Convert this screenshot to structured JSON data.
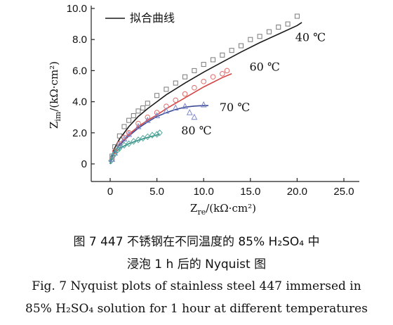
{
  "chart_data": {
    "type": "scatter",
    "legend": {
      "label": "拟合曲线",
      "placement": "top-left"
    },
    "xlabel_pre": "Z",
    "xlabel_sub": "re",
    "xlabel_post": "/(kΩ·cm²)",
    "ylabel_pre": "Z",
    "ylabel_sub": "im",
    "ylabel_post": "/(kΩ·cm²)",
    "xlim": [
      0,
      25
    ],
    "ylim": [
      0,
      10
    ],
    "xticks": [
      0,
      5,
      10,
      15,
      20,
      25
    ],
    "xtick_labels": [
      "0",
      "5.0",
      "10.0",
      "15.0",
      "20.0",
      "25.0"
    ],
    "yticks": [
      0,
      2,
      4,
      6,
      8,
      10
    ],
    "ytick_labels": [
      "0",
      "2.0",
      "4.0",
      "6.0",
      "8.0",
      "10.0"
    ],
    "series": [
      {
        "name": "40 ℃",
        "marker": "square",
        "color": "#7a7a7a",
        "fit_color": "#1a1a1a",
        "label_at": [
          19.8,
          7.9
        ],
        "x": [
          0.2,
          0.5,
          1.0,
          1.5,
          2.0,
          2.5,
          3.0,
          3.5,
          4.0,
          5.0,
          6.0,
          7.0,
          8.0,
          9.0,
          10.0,
          11.0,
          12.0,
          13.0,
          14.0,
          15.0,
          16.0,
          17.0,
          18.0,
          19.0,
          20.0
        ],
        "y": [
          0.5,
          1.1,
          1.8,
          2.4,
          2.8,
          3.1,
          3.4,
          3.6,
          3.9,
          4.4,
          4.8,
          5.2,
          5.6,
          6.0,
          6.4,
          6.7,
          7.0,
          7.3,
          7.6,
          8.0,
          8.2,
          8.5,
          8.8,
          9.0,
          9.5
        ],
        "fit_x": [
          0,
          0.2,
          0.5,
          1,
          2,
          3,
          4,
          5,
          6,
          8,
          10,
          12,
          14,
          16,
          18,
          20,
          20.5
        ],
        "fit_y": [
          0,
          0.55,
          1.05,
          1.6,
          2.4,
          3.05,
          3.55,
          4.0,
          4.45,
          5.2,
          5.9,
          6.55,
          7.2,
          7.8,
          8.35,
          8.9,
          9.1
        ]
      },
      {
        "name": "60 ℃",
        "marker": "circle",
        "color": "#e06a6a",
        "fit_color": "#d64545",
        "label_at": [
          14.9,
          6.0
        ],
        "x": [
          0.2,
          0.5,
          1.0,
          1.5,
          2.0,
          3.0,
          4.0,
          5.0,
          6.0,
          7.0,
          8.0,
          9.0,
          10.0,
          11.0,
          12.0,
          12.5
        ],
        "y": [
          0.3,
          0.8,
          1.3,
          1.7,
          2.0,
          2.6,
          3.0,
          3.3,
          3.7,
          4.1,
          4.5,
          4.9,
          5.3,
          5.6,
          5.8,
          6.0
        ],
        "fit_x": [
          0,
          0.2,
          0.5,
          1,
          2,
          3,
          4,
          5,
          6,
          7,
          8,
          9,
          10,
          11,
          12,
          13
        ],
        "fit_y": [
          0,
          0.4,
          0.85,
          1.25,
          1.9,
          2.4,
          2.8,
          3.15,
          3.55,
          3.9,
          4.25,
          4.6,
          4.95,
          5.25,
          5.55,
          5.8
        ]
      },
      {
        "name": "70 ℃",
        "marker": "triangle",
        "color": "#7b86c8",
        "fit_color": "#3c4a96",
        "label_at": [
          11.7,
          3.4
        ],
        "x": [
          0.2,
          0.5,
          1.0,
          1.5,
          2.0,
          3.0,
          4.0,
          5.0,
          6.0,
          7.0,
          8.0,
          8.5,
          9.0,
          10.0
        ],
        "y": [
          0.3,
          0.7,
          1.2,
          1.6,
          1.9,
          2.4,
          2.8,
          3.1,
          3.4,
          3.6,
          3.7,
          3.3,
          3.0,
          3.8
        ],
        "fit_x": [
          0,
          0.2,
          0.5,
          1,
          2,
          3,
          4,
          5,
          6,
          7,
          8,
          9,
          10,
          10.5
        ],
        "fit_y": [
          0,
          0.4,
          0.8,
          1.2,
          1.8,
          2.3,
          2.7,
          3.05,
          3.3,
          3.5,
          3.65,
          3.72,
          3.75,
          3.75
        ]
      },
      {
        "name": "80 ℃",
        "marker": "diamond",
        "color": "#4fa79a",
        "fit_color": "#2f8a7e",
        "label_at": [
          7.6,
          1.9
        ],
        "x": [
          0.1,
          0.3,
          0.5,
          0.8,
          1.0,
          1.5,
          2.0,
          2.5,
          3.0,
          3.5,
          4.0,
          4.5,
          5.0,
          5.3
        ],
        "y": [
          0.2,
          0.5,
          0.7,
          0.9,
          1.0,
          1.2,
          1.3,
          1.45,
          1.55,
          1.65,
          1.75,
          1.85,
          1.9,
          2.0
        ],
        "fit_x": [
          0,
          0.1,
          0.3,
          0.5,
          1,
          1.5,
          2,
          3,
          4,
          5,
          5.3
        ],
        "fit_y": [
          0,
          0.3,
          0.55,
          0.72,
          0.98,
          1.16,
          1.3,
          1.52,
          1.7,
          1.86,
          1.92
        ]
      }
    ]
  },
  "caption": {
    "cn_line1": "图 7   447 不锈钢在不同温度的 85% H₂SO₄ 中",
    "cn_line2": "浸泡 1 h 后的 Nyquist 图",
    "en_line1": "Fig. 7   Nyquist plots of stainless steel 447 immersed in",
    "en_line2": "85% H₂SO₄ solution for 1 hour at different temperatures"
  }
}
